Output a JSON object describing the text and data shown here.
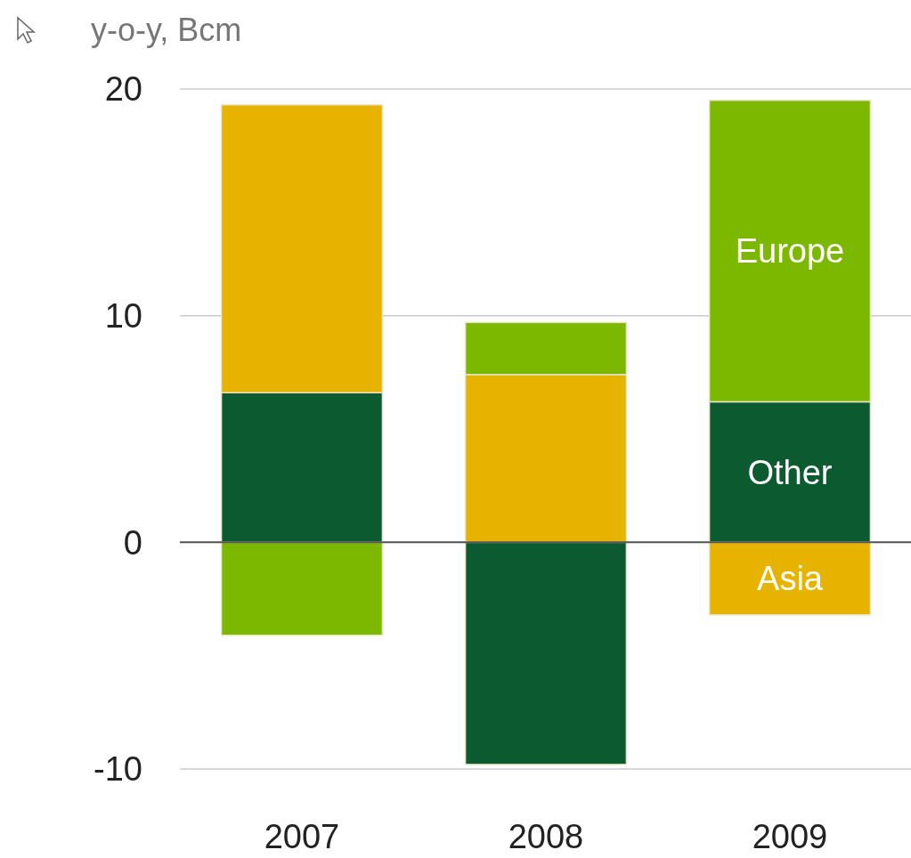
{
  "chart_data": {
    "type": "bar",
    "stacked": true,
    "ylabel": "y-o-y, Bcm",
    "categories": [
      "2007",
      "2008",
      "2009"
    ],
    "series": [
      {
        "name": "Other",
        "color": "#0b5a30",
        "values": [
          6.6,
          -9.8,
          6.2
        ]
      },
      {
        "name": "Asia",
        "color": "#e6b400",
        "values": [
          12.7,
          7.4,
          -3.2
        ]
      },
      {
        "name": "Europe",
        "color": "#7cb800",
        "values": [
          -4.1,
          2.3,
          13.3
        ]
      }
    ],
    "ylim": [
      -10,
      20
    ],
    "yticks": [
      -10,
      0,
      10,
      20
    ],
    "grid": "y"
  }
}
